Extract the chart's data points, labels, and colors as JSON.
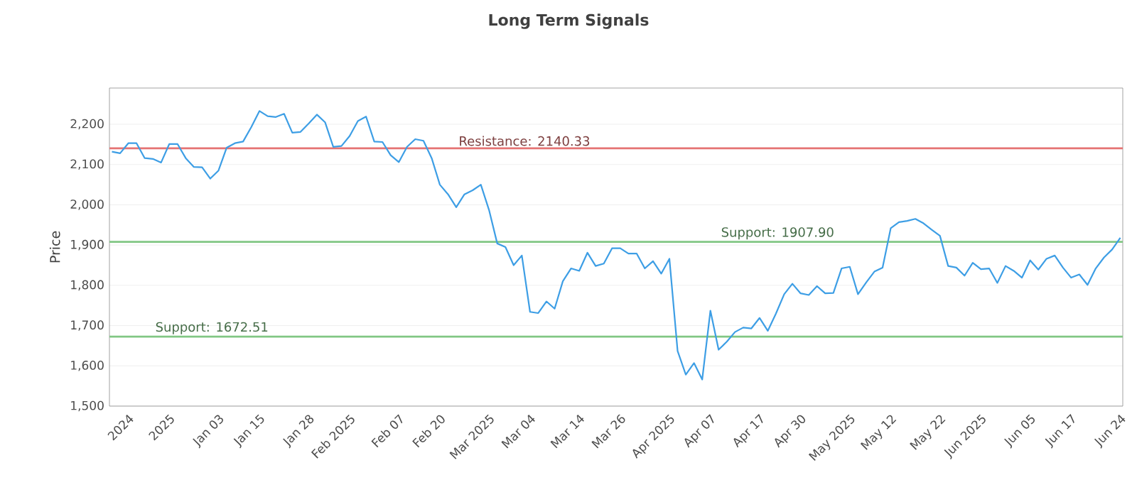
{
  "chart_data": {
    "type": "line",
    "title": "Long Term Signals",
    "ylabel": "Price",
    "categories": [
      null,
      null,
      "2024",
      null,
      null,
      null,
      null,
      "2025",
      null,
      null,
      null,
      null,
      null,
      "Jan 03",
      null,
      null,
      null,
      null,
      "Jan 15",
      null,
      null,
      null,
      null,
      null,
      "Jan 28",
      null,
      null,
      null,
      null,
      "Feb 2025",
      null,
      null,
      null,
      null,
      null,
      "Feb 07",
      null,
      null,
      null,
      null,
      "Feb 20",
      null,
      null,
      null,
      null,
      null,
      "Mar 2025",
      null,
      null,
      null,
      null,
      "Mar 04",
      null,
      null,
      null,
      null,
      null,
      "Mar 14",
      null,
      null,
      null,
      null,
      "Mar 26",
      null,
      null,
      null,
      null,
      null,
      "Apr 2025",
      null,
      null,
      null,
      null,
      "Apr 07",
      null,
      null,
      null,
      null,
      null,
      "Apr 17",
      null,
      null,
      null,
      null,
      "Apr 30",
      null,
      null,
      null,
      null,
      null,
      "May 2025",
      null,
      null,
      null,
      null,
      "May 12",
      null,
      null,
      null,
      null,
      null,
      "May 22",
      null,
      null,
      null,
      null,
      "Jun 2025",
      null,
      null,
      null,
      null,
      null,
      "Jun 05",
      null,
      null,
      null,
      null,
      "Jun 17",
      null,
      null,
      null,
      null,
      null,
      "Jun 24"
    ],
    "series": [
      {
        "color": "#3d9ee5",
        "values": [
          2132,
          2128,
          2153,
          2153,
          2116,
          2114,
          2105,
          2151,
          2151,
          2116,
          2094,
          2093,
          2065,
          2085,
          2142,
          2153,
          2157,
          2193,
          2233,
          2220,
          2218,
          2226,
          2179,
          2181,
          2202,
          2224,
          2205,
          2144,
          2146,
          2171,
          2208,
          2219,
          2157,
          2156,
          2123,
          2106,
          2144,
          2163,
          2159,
          2116,
          2050,
          2026,
          1994,
          2026,
          2036,
          2050,
          1987,
          1904,
          1895,
          1850,
          1874,
          1734,
          1731,
          1760,
          1742,
          1810,
          1842,
          1836,
          1881,
          1848,
          1854,
          1892,
          1892,
          1879,
          1879,
          1842,
          1860,
          1829,
          1866,
          1637,
          1578,
          1607,
          1566,
          1737,
          1640,
          1660,
          1684,
          1695,
          1693,
          1719,
          1687,
          1730,
          1778,
          1804,
          1780,
          1776,
          1798,
          1780,
          1781,
          1842,
          1846,
          1778,
          1807,
          1834,
          1844,
          1942,
          1957,
          1960,
          1965,
          1954,
          1938,
          1923,
          1848,
          1844,
          1824,
          1856,
          1840,
          1842,
          1806,
          1848,
          1836,
          1819,
          1862,
          1839,
          1866,
          1874,
          1844,
          1819,
          1827,
          1801,
          1842,
          1869,
          1889,
          1918
        ]
      }
    ],
    "ylim": [
      1500,
      2290
    ],
    "yticks": [
      {
        "value": 1500,
        "label": "1,500"
      },
      {
        "value": 1600,
        "label": "1,600"
      },
      {
        "value": 1700,
        "label": "1,700"
      },
      {
        "value": 1800,
        "label": "1,800"
      },
      {
        "value": 1900,
        "label": "1,900"
      },
      {
        "value": 2000,
        "label": "2,000"
      },
      {
        "value": 2100,
        "label": "2,100"
      },
      {
        "value": 2200,
        "label": "2,200"
      }
    ],
    "ref_lines": [
      {
        "axis": "y",
        "value": 2140.33,
        "label": "Resistance: 2140.33",
        "color": "#e57373"
      },
      {
        "axis": "y",
        "value": 1907.9,
        "label": "Support: 1907.90",
        "color": "#81c784"
      },
      {
        "axis": "y",
        "value": 1672.51,
        "label": "Support: 1672.51",
        "color": "#81c784"
      }
    ],
    "grid": "y",
    "legend": false,
    "marker": "none",
    "line_style": "solid"
  }
}
